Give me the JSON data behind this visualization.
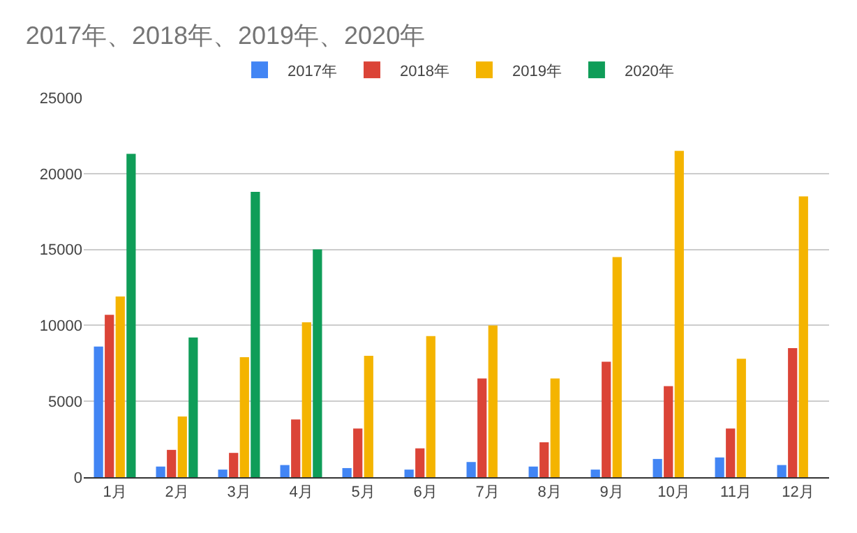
{
  "chart_data": {
    "type": "bar",
    "title": "2017年、2018年、2019年、2020年",
    "categories": [
      "1月",
      "2月",
      "3月",
      "4月",
      "5月",
      "6月",
      "7月",
      "8月",
      "9月",
      "10月",
      "11月",
      "12月"
    ],
    "series": [
      {
        "name": "2017年",
        "color": "#4285f4",
        "values": [
          8600,
          700,
          500,
          800,
          600,
          500,
          1000,
          700,
          500,
          1200,
          1300,
          800
        ]
      },
      {
        "name": "2018年",
        "color": "#db4437",
        "values": [
          10700,
          1800,
          1600,
          3800,
          3200,
          1900,
          6500,
          2300,
          7600,
          6000,
          3200,
          8500
        ]
      },
      {
        "name": "2019年",
        "color": "#f4b400",
        "values": [
          11900,
          4000,
          7900,
          10200,
          8000,
          9300,
          10000,
          6500,
          14500,
          21500,
          7800,
          18500
        ]
      },
      {
        "name": "2020年",
        "color": "#0f9d58",
        "values": [
          21300,
          9200,
          18800,
          15000,
          null,
          null,
          null,
          null,
          null,
          null,
          null,
          null
        ]
      }
    ],
    "ylim": [
      0,
      25000
    ],
    "yticks": [
      0,
      5000,
      10000,
      15000,
      20000,
      25000
    ],
    "grid": "y",
    "legend": "top"
  }
}
